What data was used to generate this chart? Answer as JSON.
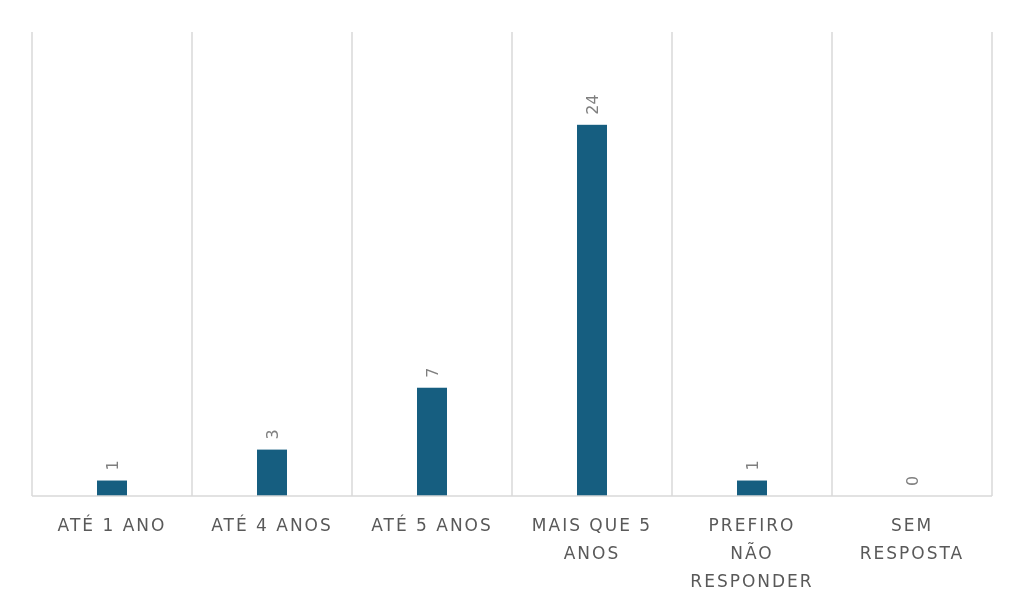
{
  "chart_data": {
    "type": "bar",
    "categories": [
      "ATÉ 1 ANO",
      "ATÉ 4 ANOS",
      "ATÉ 5 ANOS",
      "MAIS QUE 5 ANOS",
      "PREFIRO NÃO RESPONDER",
      "SEM RESPOSTA"
    ],
    "values": [
      1,
      3,
      7,
      24,
      1,
      0
    ],
    "color": "#165e80",
    "data_labels": true,
    "grid": "x"
  }
}
